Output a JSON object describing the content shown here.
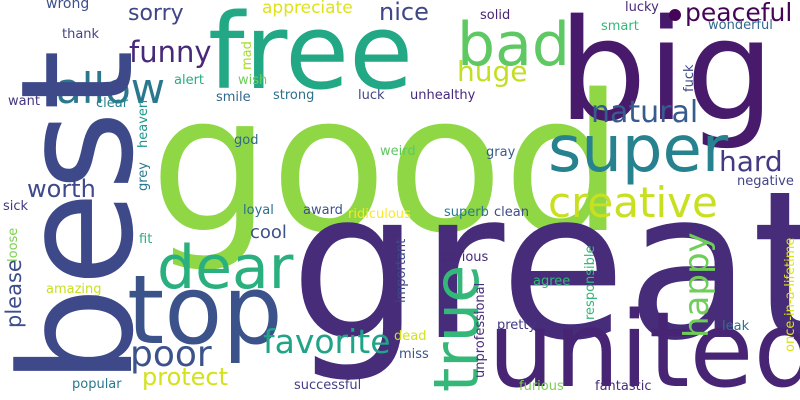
{
  "words": [
    {
      "id": "good",
      "text": "good",
      "color": "#8fd744"
    },
    {
      "id": "great",
      "text": "great",
      "color": "#472c7a"
    },
    {
      "id": "best",
      "text": "best",
      "color": "#3e4989"
    },
    {
      "id": "big",
      "text": "big",
      "color": "#481a6c"
    },
    {
      "id": "free",
      "text": "free",
      "color": "#22a884"
    },
    {
      "id": "united",
      "text": "united",
      "color": "#482475"
    },
    {
      "id": "top",
      "text": "top",
      "color": "#3b528b"
    },
    {
      "id": "super",
      "text": "super",
      "color": "#26828e"
    },
    {
      "id": "bad",
      "text": "bad",
      "color": "#5ec962"
    },
    {
      "id": "true",
      "text": "true",
      "color": "#35b779"
    },
    {
      "id": "dear",
      "text": "dear",
      "color": "#2ab07f"
    },
    {
      "id": "allow",
      "text": "allow",
      "color": "#2a788e"
    },
    {
      "id": "creative",
      "text": "creative",
      "color": "#c8e020"
    },
    {
      "id": "poor",
      "text": "poor",
      "color": "#3b528b"
    },
    {
      "id": "favorite",
      "text": "favorite",
      "color": "#20a386"
    },
    {
      "id": "natural",
      "text": "natural",
      "color": "#365c8d"
    },
    {
      "id": "funny",
      "text": "funny",
      "color": "#482878"
    },
    {
      "id": "peaceful",
      "text": "peaceful",
      "color": "#450457"
    },
    {
      "id": "happy",
      "text": "happy",
      "color": "#6ece58"
    },
    {
      "id": "hard",
      "text": "hard",
      "color": "#443a83"
    },
    {
      "id": "huge",
      "text": "huge",
      "color": "#c2df23"
    },
    {
      "id": "worth",
      "text": "worth",
      "color": "#3e4a89"
    },
    {
      "id": "protect",
      "text": "protect",
      "color": "#d2e21b"
    },
    {
      "id": "nice",
      "text": "nice",
      "color": "#3f4788"
    },
    {
      "id": "sorry",
      "text": "sorry",
      "color": "#404588"
    },
    {
      "id": "please",
      "text": "please",
      "color": "#3d4e8a"
    },
    {
      "id": "appreciate",
      "text": "appreciate",
      "color": "#dde318"
    },
    {
      "id": "cool",
      "text": "cool",
      "color": "#3b528b"
    },
    {
      "id": "wrong",
      "text": "wrong",
      "color": "#3c508b"
    },
    {
      "id": "thank",
      "text": "thank",
      "color": "#404688"
    },
    {
      "id": "want",
      "text": "want",
      "color": "#453581"
    },
    {
      "id": "clear",
      "text": "clear",
      "color": "#26828e"
    },
    {
      "id": "alert",
      "text": "alert",
      "color": "#27ad81"
    },
    {
      "id": "wish",
      "text": "wish",
      "color": "#6ece58"
    },
    {
      "id": "mad",
      "text": "mad",
      "color": "#a8db34"
    },
    {
      "id": "smile",
      "text": "smile",
      "color": "#31688e"
    },
    {
      "id": "strong",
      "text": "strong",
      "color": "#2d718e"
    },
    {
      "id": "luck",
      "text": "luck",
      "color": "#414487"
    },
    {
      "id": "unhealthy",
      "text": "unhealthy",
      "color": "#472a7a"
    },
    {
      "id": "solid",
      "text": "solid",
      "color": "#482475"
    },
    {
      "id": "lucky",
      "text": "lucky",
      "color": "#482878"
    },
    {
      "id": "smart",
      "text": "smart",
      "color": "#35b779"
    },
    {
      "id": "wonderful",
      "text": "wonderful",
      "color": "#31688e"
    },
    {
      "id": "fuck",
      "text": "fuck",
      "color": "#3e4a89"
    },
    {
      "id": "god",
      "text": "god",
      "color": "#31688e"
    },
    {
      "id": "grey",
      "text": "grey",
      "color": "#2a788e"
    },
    {
      "id": "heaven",
      "text": "heaven",
      "color": "#1f978b"
    },
    {
      "id": "weird",
      "text": "weird",
      "color": "#5ec962"
    },
    {
      "id": "gray",
      "text": "gray",
      "color": "#365c8d"
    },
    {
      "id": "negative",
      "text": "negative",
      "color": "#414487"
    },
    {
      "id": "sick",
      "text": "sick",
      "color": "#443983"
    },
    {
      "id": "loose",
      "text": "loose",
      "color": "#7ad151"
    },
    {
      "id": "fit",
      "text": "fit",
      "color": "#29af7f"
    },
    {
      "id": "loyal",
      "text": "loyal",
      "color": "#2e6e8e"
    },
    {
      "id": "award",
      "text": "award",
      "color": "#3b528b"
    },
    {
      "id": "ridiculous",
      "text": "ridiculous",
      "color": "#fde725"
    },
    {
      "id": "superb",
      "text": "superb",
      "color": "#2a788e"
    },
    {
      "id": "clean",
      "text": "clean",
      "color": "#3e4a89"
    },
    {
      "id": "once-in-a-lifetime",
      "text": "once-in-a-lifetime",
      "color": "#dde318"
    },
    {
      "id": "amazing",
      "text": "amazing",
      "color": "#c8e020"
    },
    {
      "id": "important",
      "text": "important",
      "color": "#3e4989"
    },
    {
      "id": "curious",
      "text": "curious",
      "color": "#482878"
    },
    {
      "id": "unprofessional",
      "text": "unprofessional",
      "color": "#472d7b"
    },
    {
      "id": "responsible",
      "text": "responsible",
      "color": "#35b779"
    },
    {
      "id": "agree",
      "text": "agree",
      "color": "#35b779"
    },
    {
      "id": "leak",
      "text": "leak",
      "color": "#2c728e"
    },
    {
      "id": "pretty",
      "text": "pretty",
      "color": "#443983"
    },
    {
      "id": "dead",
      "text": "dead",
      "color": "#d2e21b"
    },
    {
      "id": "miss",
      "text": "miss",
      "color": "#3a538b"
    },
    {
      "id": "popular",
      "text": "popular",
      "color": "#2a788e"
    },
    {
      "id": "successful",
      "text": "successful",
      "color": "#433e85"
    },
    {
      "id": "furious",
      "text": "furious",
      "color": "#7ad151"
    },
    {
      "id": "fantastic",
      "text": "fantastic",
      "color": "#472c7a"
    }
  ]
}
